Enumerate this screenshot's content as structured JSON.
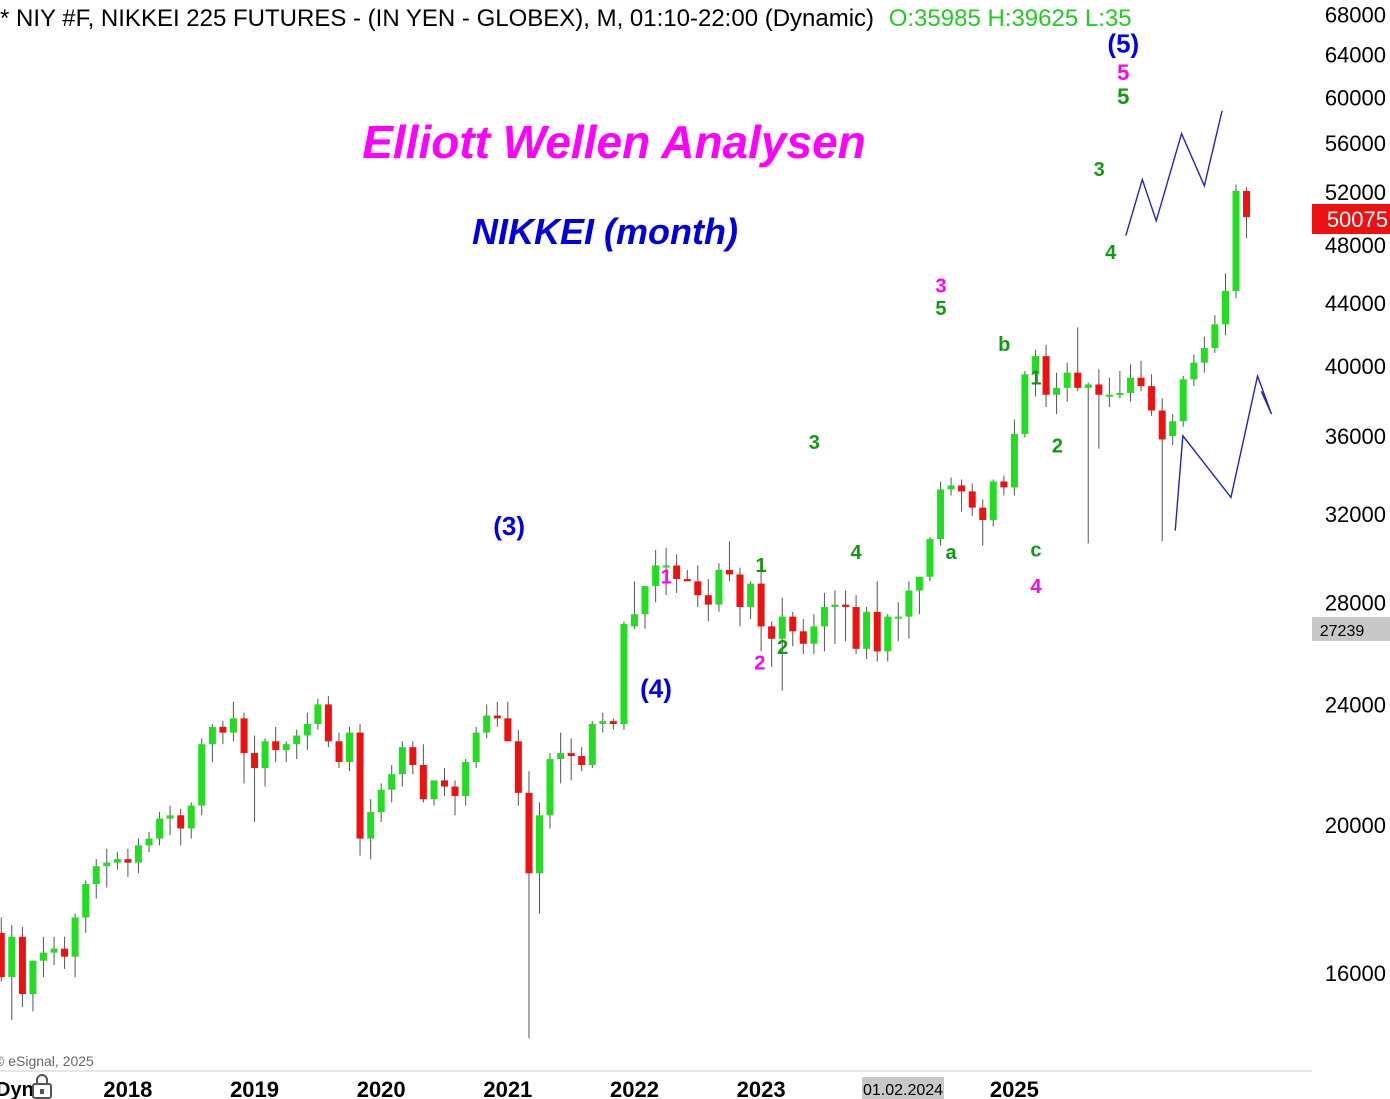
{
  "header": {
    "symbol_line": "* NIY #F, NIKKEI 225 FUTURES - (IN YEN - GLOBEX), M, 01:10-22:00 (Dynamic)",
    "ohlc_line": "O:35985 H:39625 L:35"
  },
  "annotations": {
    "title": "Elliott Wellen Analysen",
    "subtitle": "NIKKEI (month)",
    "copyright": "© eSignal, 2025",
    "corner_label": "Dyn",
    "crosshair_date": "01.02.2024"
  },
  "price_tags": {
    "last": "50075",
    "cursor": "27239"
  },
  "colors": {
    "up": "#22dd22",
    "down": "#ee1111",
    "title": "#ff00ff",
    "subtitle": "#0000dd",
    "wave_green": "#119911",
    "wave_magenta": "#ff00ff",
    "wave_blue": "#0000ee",
    "projection": "#2222cc",
    "last_tag": "#ee1111",
    "cursor_tag": "#c8c8c8",
    "header_green": "#22cc22"
  },
  "wave_labels": [
    {
      "text": "(3)",
      "color": "blue",
      "size": 26,
      "x": 2021.01,
      "y": 31000
    },
    {
      "text": "(4)",
      "color": "blue",
      "size": 26,
      "x": 2022.17,
      "y": 24250
    },
    {
      "text": "(5)",
      "color": "blue",
      "size": 26,
      "x": 2025.86,
      "y": 64200
    },
    {
      "text": "5",
      "color": "magenta",
      "size": 22,
      "x": 2025.86,
      "y": 61600
    },
    {
      "text": "5",
      "color": "green",
      "size": 22,
      "x": 2025.86,
      "y": 59400
    },
    {
      "text": "1",
      "color": "magenta",
      "size": 20,
      "x": 2022.25,
      "y": 28800
    },
    {
      "text": "2",
      "color": "magenta",
      "size": 20,
      "x": 2022.99,
      "y": 25300
    },
    {
      "text": "1",
      "color": "green",
      "size": 20,
      "x": 2023.0,
      "y": 29300
    },
    {
      "text": "2",
      "color": "green",
      "size": 20,
      "x": 2023.17,
      "y": 25900
    },
    {
      "text": "3",
      "color": "green",
      "size": 20,
      "x": 2023.42,
      "y": 35300
    },
    {
      "text": "4",
      "color": "green",
      "size": 20,
      "x": 2023.75,
      "y": 29900
    },
    {
      "text": "3",
      "color": "magenta",
      "size": 20,
      "x": 2024.42,
      "y": 44700
    },
    {
      "text": "5",
      "color": "green",
      "size": 20,
      "x": 2024.42,
      "y": 43200
    },
    {
      "text": "a",
      "color": "green",
      "size": 20,
      "x": 2024.5,
      "y": 29900
    },
    {
      "text": "b",
      "color": "green",
      "size": 20,
      "x": 2024.92,
      "y": 40900
    },
    {
      "text": "1",
      "color": "green",
      "size": 20,
      "x": 2025.17,
      "y": 38900
    },
    {
      "text": "2",
      "color": "green",
      "size": 20,
      "x": 2025.34,
      "y": 35100
    },
    {
      "text": "c",
      "color": "green",
      "size": 20,
      "x": 2025.17,
      "y": 30000
    },
    {
      "text": "4",
      "color": "magenta",
      "size": 20,
      "x": 2025.17,
      "y": 28400
    },
    {
      "text": "3",
      "color": "green",
      "size": 20,
      "x": 2025.67,
      "y": 53300
    },
    {
      "text": "4",
      "color": "green",
      "size": 20,
      "x": 2025.76,
      "y": 47000
    }
  ],
  "chart_data": {
    "type": "candlestick",
    "title": "",
    "scale": "log",
    "ylim": [
      13800,
      69500
    ],
    "xlim": [
      2016.99,
      2027.35
    ],
    "yticks": [
      16000,
      20000,
      24000,
      28000,
      32000,
      36000,
      40000,
      44000,
      48000,
      52000,
      56000,
      60000,
      64000,
      68000
    ],
    "xticks": [
      {
        "label": "2018",
        "x": 2018.0
      },
      {
        "label": "2019",
        "x": 2019.0
      },
      {
        "label": "2020",
        "x": 2020.0
      },
      {
        "label": "2021",
        "x": 2021.0
      },
      {
        "label": "2022",
        "x": 2022.0
      },
      {
        "label": "2023",
        "x": 2023.0
      },
      {
        "label": "2025",
        "x": 2025.0
      }
    ],
    "candles": [
      {
        "t": 2017.0,
        "o": 17000,
        "h": 17400,
        "l": 15800,
        "c": 15900
      },
      {
        "t": 2017.083,
        "o": 15900,
        "h": 17200,
        "l": 14900,
        "c": 16900
      },
      {
        "t": 2017.167,
        "o": 16900,
        "h": 17150,
        "l": 15200,
        "c": 15500
      },
      {
        "t": 2017.25,
        "o": 15500,
        "h": 16300,
        "l": 15100,
        "c": 16300
      },
      {
        "t": 2017.333,
        "o": 16300,
        "h": 16900,
        "l": 15900,
        "c": 16500
      },
      {
        "t": 2017.417,
        "o": 16500,
        "h": 16900,
        "l": 16200,
        "c": 16600
      },
      {
        "t": 2017.5,
        "o": 16600,
        "h": 16900,
        "l": 16100,
        "c": 16400
      },
      {
        "t": 2017.583,
        "o": 16400,
        "h": 17500,
        "l": 15900,
        "c": 17400
      },
      {
        "t": 2017.667,
        "o": 17400,
        "h": 18400,
        "l": 17000,
        "c": 18300
      },
      {
        "t": 2017.75,
        "o": 18300,
        "h": 19000,
        "l": 17900,
        "c": 18800
      },
      {
        "t": 2017.833,
        "o": 18800,
        "h": 19300,
        "l": 18200,
        "c": 18900
      },
      {
        "t": 2017.917,
        "o": 18900,
        "h": 19200,
        "l": 18700,
        "c": 19000
      },
      {
        "t": 2018.0,
        "o": 19000,
        "h": 19300,
        "l": 18500,
        "c": 18900
      },
      {
        "t": 2018.083,
        "o": 18900,
        "h": 19600,
        "l": 18600,
        "c": 19400
      },
      {
        "t": 2018.167,
        "o": 19400,
        "h": 19800,
        "l": 19200,
        "c": 19600
      },
      {
        "t": 2018.25,
        "o": 19600,
        "h": 20400,
        "l": 19400,
        "c": 20200
      },
      {
        "t": 2018.333,
        "o": 20200,
        "h": 20600,
        "l": 19700,
        "c": 20300
      },
      {
        "t": 2018.417,
        "o": 20300,
        "h": 20500,
        "l": 19400,
        "c": 19900
      },
      {
        "t": 2018.5,
        "o": 19900,
        "h": 20700,
        "l": 19600,
        "c": 20600
      },
      {
        "t": 2018.583,
        "o": 20600,
        "h": 22800,
        "l": 20300,
        "c": 22600
      },
      {
        "t": 2018.667,
        "o": 22600,
        "h": 23300,
        "l": 22000,
        "c": 23200
      },
      {
        "t": 2018.75,
        "o": 23200,
        "h": 23400,
        "l": 22600,
        "c": 23000
      },
      {
        "t": 2018.833,
        "o": 23000,
        "h": 24100,
        "l": 22700,
        "c": 23500
      },
      {
        "t": 2018.917,
        "o": 23500,
        "h": 23700,
        "l": 21300,
        "c": 22300
      },
      {
        "t": 2019.0,
        "o": 22300,
        "h": 22900,
        "l": 20100,
        "c": 21800
      },
      {
        "t": 2019.083,
        "o": 21800,
        "h": 22800,
        "l": 21200,
        "c": 22700
      },
      {
        "t": 2019.167,
        "o": 22700,
        "h": 23200,
        "l": 22000,
        "c": 22400
      },
      {
        "t": 2019.25,
        "o": 22400,
        "h": 22700,
        "l": 22000,
        "c": 22600
      },
      {
        "t": 2019.333,
        "o": 22600,
        "h": 23100,
        "l": 22100,
        "c": 22900
      },
      {
        "t": 2019.417,
        "o": 22900,
        "h": 23700,
        "l": 22400,
        "c": 23300
      },
      {
        "t": 2019.5,
        "o": 23300,
        "h": 24200,
        "l": 23100,
        "c": 24000
      },
      {
        "t": 2019.583,
        "o": 24000,
        "h": 24300,
        "l": 22500,
        "c": 22700
      },
      {
        "t": 2019.667,
        "o": 22700,
        "h": 23000,
        "l": 21800,
        "c": 22000
      },
      {
        "t": 2019.75,
        "o": 22000,
        "h": 23200,
        "l": 21700,
        "c": 23000
      },
      {
        "t": 2019.833,
        "o": 23000,
        "h": 23300,
        "l": 19100,
        "c": 19600
      },
      {
        "t": 2019.917,
        "o": 19600,
        "h": 20800,
        "l": 19000,
        "c": 20400
      },
      {
        "t": 2020.0,
        "o": 20400,
        "h": 21300,
        "l": 20100,
        "c": 21100
      },
      {
        "t": 2020.083,
        "o": 21100,
        "h": 21900,
        "l": 20700,
        "c": 21600
      },
      {
        "t": 2020.167,
        "o": 21600,
        "h": 22700,
        "l": 21200,
        "c": 22500
      },
      {
        "t": 2020.25,
        "o": 22500,
        "h": 22700,
        "l": 21600,
        "c": 21900
      },
      {
        "t": 2020.333,
        "o": 21900,
        "h": 22600,
        "l": 20700,
        "c": 20800
      },
      {
        "t": 2020.417,
        "o": 20800,
        "h": 21100,
        "l": 20600,
        "c": 21400
      },
      {
        "t": 2020.5,
        "o": 21400,
        "h": 21800,
        "l": 20900,
        "c": 21200
      },
      {
        "t": 2020.583,
        "o": 21200,
        "h": 21400,
        "l": 20300,
        "c": 20900
      },
      {
        "t": 2020.667,
        "o": 20900,
        "h": 22100,
        "l": 20600,
        "c": 22000
      },
      {
        "t": 2020.75,
        "o": 22000,
        "h": 23200,
        "l": 21800,
        "c": 23000
      },
      {
        "t": 2020.833,
        "o": 23000,
        "h": 24000,
        "l": 22800,
        "c": 23600
      },
      {
        "t": 2020.917,
        "o": 23600,
        "h": 24100,
        "l": 23200,
        "c": 23500
      },
      {
        "t": 2021.0,
        "o": 23500,
        "h": 24100,
        "l": 22800,
        "c": 22700
      },
      {
        "t": 2021.083,
        "o": 22700,
        "h": 23100,
        "l": 20600,
        "c": 21000
      },
      {
        "t": 2021.167,
        "o": 21000,
        "h": 21700,
        "l": 14500,
        "c": 18600
      },
      {
        "t": 2021.25,
        "o": 18600,
        "h": 20700,
        "l": 17500,
        "c": 20300
      },
      {
        "t": 2021.333,
        "o": 20300,
        "h": 22300,
        "l": 19900,
        "c": 22100
      },
      {
        "t": 2021.417,
        "o": 22100,
        "h": 23000,
        "l": 21300,
        "c": 22300
      },
      {
        "t": 2021.5,
        "o": 22300,
        "h": 22800,
        "l": 21400,
        "c": 22200
      },
      {
        "t": 2021.583,
        "o": 22200,
        "h": 22500,
        "l": 21700,
        "c": 21900
      },
      {
        "t": 2021.667,
        "o": 21900,
        "h": 23400,
        "l": 21800,
        "c": 23300
      },
      {
        "t": 2021.75,
        "o": 23300,
        "h": 23700,
        "l": 23000,
        "c": 23400
      },
      {
        "t": 2021.833,
        "o": 23400,
        "h": 23500,
        "l": 23100,
        "c": 23300
      },
      {
        "t": 2021.917,
        "o": 23300,
        "h": 27200,
        "l": 23100,
        "c": 27100
      },
      {
        "t": 2022.0,
        "o": 27000,
        "h": 28900,
        "l": 26900,
        "c": 27500
      },
      {
        "t": 2022.083,
        "o": 27500,
        "h": 28500,
        "l": 26900,
        "c": 28700
      },
      {
        "t": 2022.167,
        "o": 28700,
        "h": 30300,
        "l": 28000,
        "c": 29600
      },
      {
        "t": 2022.25,
        "o": 29600,
        "h": 30400,
        "l": 28300,
        "c": 29600
      },
      {
        "t": 2022.333,
        "o": 29600,
        "h": 30100,
        "l": 28400,
        "c": 29000
      },
      {
        "t": 2022.417,
        "o": 29000,
        "h": 29400,
        "l": 28900,
        "c": 28900
      },
      {
        "t": 2022.5,
        "o": 28900,
        "h": 29600,
        "l": 27800,
        "c": 28300
      },
      {
        "t": 2022.583,
        "o": 28300,
        "h": 29000,
        "l": 27200,
        "c": 27900
      },
      {
        "t": 2022.667,
        "o": 27900,
        "h": 29700,
        "l": 27600,
        "c": 29400
      },
      {
        "t": 2022.75,
        "o": 29400,
        "h": 30700,
        "l": 28900,
        "c": 29200
      },
      {
        "t": 2022.833,
        "o": 29200,
        "h": 29500,
        "l": 27000,
        "c": 27800
      },
      {
        "t": 2022.917,
        "o": 27800,
        "h": 28900,
        "l": 27300,
        "c": 28800
      },
      {
        "t": 2023.0,
        "o": 28800,
        "h": 29500,
        "l": 26000,
        "c": 27000
      },
      {
        "t": 2023.083,
        "o": 27000,
        "h": 27200,
        "l": 25400,
        "c": 26500
      },
      {
        "t": 2023.167,
        "o": 26500,
        "h": 28200,
        "l": 24500,
        "c": 27400
      },
      {
        "t": 2023.25,
        "o": 27400,
        "h": 27600,
        "l": 26200,
        "c": 26800
      },
      {
        "t": 2023.333,
        "o": 26800,
        "h": 27300,
        "l": 25900,
        "c": 26300
      },
      {
        "t": 2023.417,
        "o": 26300,
        "h": 27500,
        "l": 25900,
        "c": 27000
      },
      {
        "t": 2023.5,
        "o": 27000,
        "h": 28400,
        "l": 26000,
        "c": 27800
      },
      {
        "t": 2023.583,
        "o": 27800,
        "h": 28500,
        "l": 26300,
        "c": 27900
      },
      {
        "t": 2023.667,
        "o": 27900,
        "h": 28500,
        "l": 26400,
        "c": 27800
      },
      {
        "t": 2023.75,
        "o": 27800,
        "h": 28300,
        "l": 25900,
        "c": 26100
      },
      {
        "t": 2023.833,
        "o": 26100,
        "h": 27800,
        "l": 25700,
        "c": 27600
      },
      {
        "t": 2023.917,
        "o": 27600,
        "h": 28900,
        "l": 25600,
        "c": 26000
      },
      {
        "t": 2024.0,
        "o": 26000,
        "h": 27500,
        "l": 25600,
        "c": 27400
      },
      {
        "t": 2024.083,
        "o": 27400,
        "h": 28000,
        "l": 26400,
        "c": 27400
      },
      {
        "t": 2024.167,
        "o": 27400,
        "h": 28900,
        "l": 26500,
        "c": 28500
      },
      {
        "t": 2024.25,
        "o": 28500,
        "h": 29000,
        "l": 27500,
        "c": 29100
      },
      {
        "t": 2024.333,
        "o": 29100,
        "h": 30900,
        "l": 28900,
        "c": 30800
      },
      {
        "t": 2024.417,
        "o": 30800,
        "h": 33600,
        "l": 30500,
        "c": 33200
      },
      {
        "t": 2024.5,
        "o": 33200,
        "h": 33800,
        "l": 32900,
        "c": 33400
      },
      {
        "t": 2024.583,
        "o": 33400,
        "h": 33700,
        "l": 32100,
        "c": 33100
      },
      {
        "t": 2024.667,
        "o": 33100,
        "h": 33500,
        "l": 31900,
        "c": 32300
      },
      {
        "t": 2024.75,
        "o": 32300,
        "h": 32700,
        "l": 30500,
        "c": 31700
      },
      {
        "t": 2024.833,
        "o": 31700,
        "h": 33700,
        "l": 31400,
        "c": 33600
      },
      {
        "t": 2024.917,
        "o": 33600,
        "h": 33900,
        "l": 32900,
        "c": 33300
      },
      {
        "t": 2025.0,
        "o": 33300,
        "h": 36900,
        "l": 32900,
        "c": 36100
      },
      {
        "t": 2025.083,
        "o": 36100,
        "h": 39700,
        "l": 35900,
        "c": 39500
      },
      {
        "t": 2025.167,
        "o": 39500,
        "h": 41000,
        "l": 38200,
        "c": 40600
      },
      {
        "t": 2025.25,
        "o": 40600,
        "h": 41300,
        "l": 37600,
        "c": 38300
      },
      {
        "t": 2025.333,
        "o": 38300,
        "h": 39600,
        "l": 37200,
        "c": 38700
      },
      {
        "t": 2025.417,
        "o": 38700,
        "h": 40200,
        "l": 37900,
        "c": 39600
      },
      {
        "t": 2025.5,
        "o": 39600,
        "h": 42400,
        "l": 38500,
        "c": 38700
      },
      {
        "t": 2025.583,
        "o": 38700,
        "h": 39000,
        "l": 30600,
        "c": 38900
      },
      {
        "t": 2025.667,
        "o": 38900,
        "h": 39800,
        "l": 35300,
        "c": 38300
      },
      {
        "t": 2025.75,
        "o": 38300,
        "h": 39300,
        "l": 37600,
        "c": 38300
      },
      {
        "t": 2025.833,
        "o": 38300,
        "h": 39700,
        "l": 38100,
        "c": 38400
      },
      {
        "t": 2025.917,
        "o": 38400,
        "h": 40100,
        "l": 37900,
        "c": 39300
      },
      {
        "t": 2026.0,
        "o": 39300,
        "h": 40300,
        "l": 38500,
        "c": 38800
      },
      {
        "t": 2026.083,
        "o": 38800,
        "h": 39500,
        "l": 37100,
        "c": 37400
      },
      {
        "t": 2026.167,
        "o": 37400,
        "h": 38100,
        "l": 30700,
        "c": 35800
      },
      {
        "t": 2026.25,
        "o": 35985,
        "h": 37200,
        "l": 35500,
        "c": 36800
      },
      {
        "t": 2026.333,
        "o": 36800,
        "h": 39400,
        "l": 36500,
        "c": 39200
      },
      {
        "t": 2026.417,
        "o": 39200,
        "h": 40700,
        "l": 38800,
        "c": 40200
      },
      {
        "t": 2026.5,
        "o": 40200,
        "h": 41800,
        "l": 39600,
        "c": 41100
      },
      {
        "t": 2026.583,
        "o": 41100,
        "h": 43200,
        "l": 40800,
        "c": 42600
      },
      {
        "t": 2026.667,
        "o": 42600,
        "h": 46000,
        "l": 41900,
        "c": 44800
      },
      {
        "t": 2026.75,
        "o": 44800,
        "h": 52600,
        "l": 44300,
        "c": 52100
      },
      {
        "t": 2026.833,
        "o": 52100,
        "h": 52400,
        "l": 48500,
        "c": 50075
      }
    ],
    "projection": [
      {
        "x": 2026.27,
        "y": 31200
      },
      {
        "x": 2026.33,
        "y": 36000
      },
      {
        "x": 2026.71,
        "y": 32800
      },
      {
        "x": 2026.92,
        "y": 39400
      },
      {
        "x": 2027.03,
        "y": 37200
      },
      {
        "x": 2026.95,
        "y": 38500
      }
    ],
    "projection_future": [
      {
        "x": 2025.88,
        "y": 48700
      },
      {
        "x": 2026.01,
        "y": 53000
      },
      {
        "x": 2026.12,
        "y": 49800
      },
      {
        "x": 2026.32,
        "y": 56800
      },
      {
        "x": 2026.5,
        "y": 52500
      },
      {
        "x": 2026.64,
        "y": 58800
      }
    ]
  }
}
